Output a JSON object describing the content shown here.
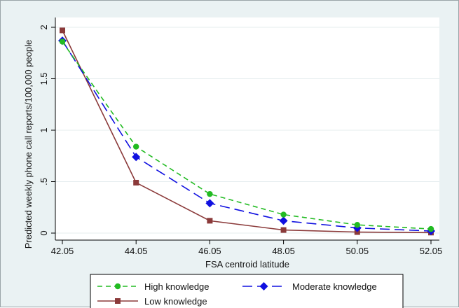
{
  "chart_data": {
    "type": "line",
    "xlabel": "FSA centroid latitude",
    "ylabel": "Predicted weekly phone call reports/100,000 people",
    "x": [
      42.05,
      44.05,
      46.05,
      48.05,
      50.05,
      52.05
    ],
    "x_tick_labels": [
      "42.05",
      "44.05",
      "46.05",
      "48.05",
      "50.05",
      "52.05"
    ],
    "xlim": [
      42.05,
      52.05
    ],
    "y_ticks": [
      0,
      0.5,
      1,
      1.5,
      2
    ],
    "y_tick_labels": [
      "0",
      ".5",
      "1",
      "1.5",
      "2"
    ],
    "ylim": [
      0,
      2
    ],
    "grid": "horizontal",
    "legend_position": "bottom",
    "series": [
      {
        "name": "High knowledge",
        "values": [
          1.86,
          0.84,
          0.38,
          0.18,
          0.08,
          0.04
        ],
        "color": "#22bb22",
        "dash": "dashed",
        "marker": "circle"
      },
      {
        "name": "Moderate knowledge",
        "values": [
          1.87,
          0.74,
          0.29,
          0.12,
          0.05,
          0.02
        ],
        "color": "#1010e0",
        "dash": "longdash",
        "marker": "diamond"
      },
      {
        "name": "Low knowledge",
        "values": [
          1.97,
          0.49,
          0.12,
          0.03,
          0.01,
          0.005
        ],
        "color": "#8b3a3a",
        "dash": "solid",
        "marker": "square"
      }
    ]
  }
}
